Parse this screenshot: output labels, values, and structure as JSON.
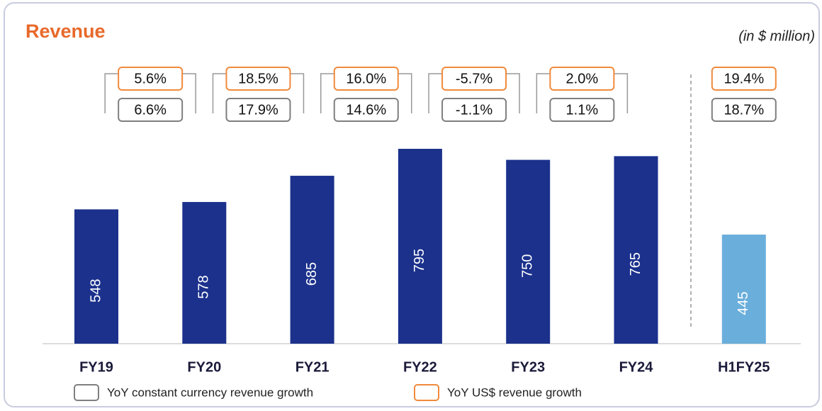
{
  "chart_data": {
    "type": "bar",
    "title": "Revenue",
    "subtitle": "(in $ million)",
    "categories": [
      "FY19",
      "FY20",
      "FY21",
      "FY22",
      "FY23",
      "FY24",
      "H1FY25"
    ],
    "values": [
      548,
      578,
      685,
      795,
      750,
      765,
      445
    ],
    "colors": [
      "#1b318c",
      "#1b318c",
      "#1b318c",
      "#1b318c",
      "#1b318c",
      "#1b318c",
      "#6aaedb"
    ],
    "growth_series": [
      {
        "name": "YoY constant currency revenue growth",
        "color": "#7f7f7f",
        "values": [
          6.6,
          17.9,
          14.6,
          -1.1,
          1.1,
          18.7
        ],
        "value_labels": [
          "6.6%",
          "17.9%",
          "14.6%",
          "-1.1%",
          "1.1%",
          "18.7%"
        ]
      },
      {
        "name": "YoY US$ revenue growth",
        "color": "#f08a3c",
        "values": [
          5.6,
          18.5,
          16.0,
          -5.7,
          2.0,
          19.4
        ],
        "value_labels": [
          "5.6%",
          "18.5%",
          "16.0%",
          "-5.7%",
          "2.0%",
          "19.4%"
        ]
      }
    ]
  }
}
